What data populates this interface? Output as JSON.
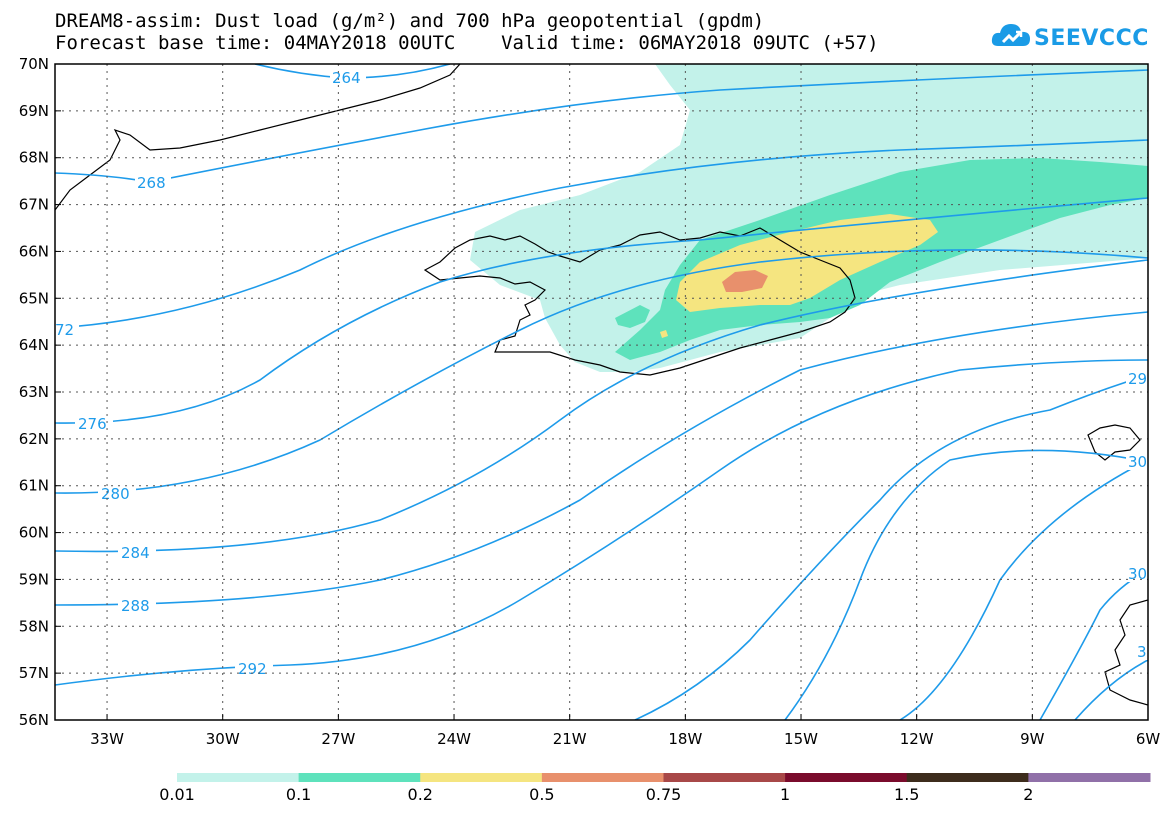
{
  "title_line1": "DREAM8-assim: Dust load (g/m²) and 700 hPa geopotential (gpdm)",
  "title_line2": "Forecast base time: 04MAY2018 00UTC    Valid time: 06MAY2018 09UTC (+57)",
  "logo_text": "SEEVCCC",
  "logo_icon": "cloud-icon",
  "lat_labels": [
    "70N",
    "69N",
    "68N",
    "67N",
    "66N",
    "65N",
    "64N",
    "63N",
    "62N",
    "61N",
    "60N",
    "59N",
    "58N",
    "57N",
    "56N"
  ],
  "lon_labels": [
    "33W",
    "30W",
    "27W",
    "24W",
    "21W",
    "18W",
    "15W",
    "12W",
    "9W",
    "6W"
  ],
  "contour_labels": [
    "264",
    "268",
    "72",
    "276",
    "280",
    "284",
    "288",
    "292",
    "29",
    "30",
    "30",
    "3"
  ],
  "colorbar": {
    "labels": [
      "0.01",
      "0.1",
      "0.2",
      "0.5",
      "0.75",
      "1",
      "1.5",
      "2"
    ],
    "colors": [
      "#c3f2ea",
      "#5ee2bc",
      "#f5e580",
      "#e8906c",
      "#a84848",
      "#7a0b2c",
      "#3d2c1c",
      "#9070a8"
    ]
  },
  "colors": {
    "contour": "#1e9bea",
    "dust_low": "#c3f2ea",
    "dust_mid": "#5ee2bc",
    "dust_high": "#f5e580",
    "dust_peak": "#e8906c"
  }
}
